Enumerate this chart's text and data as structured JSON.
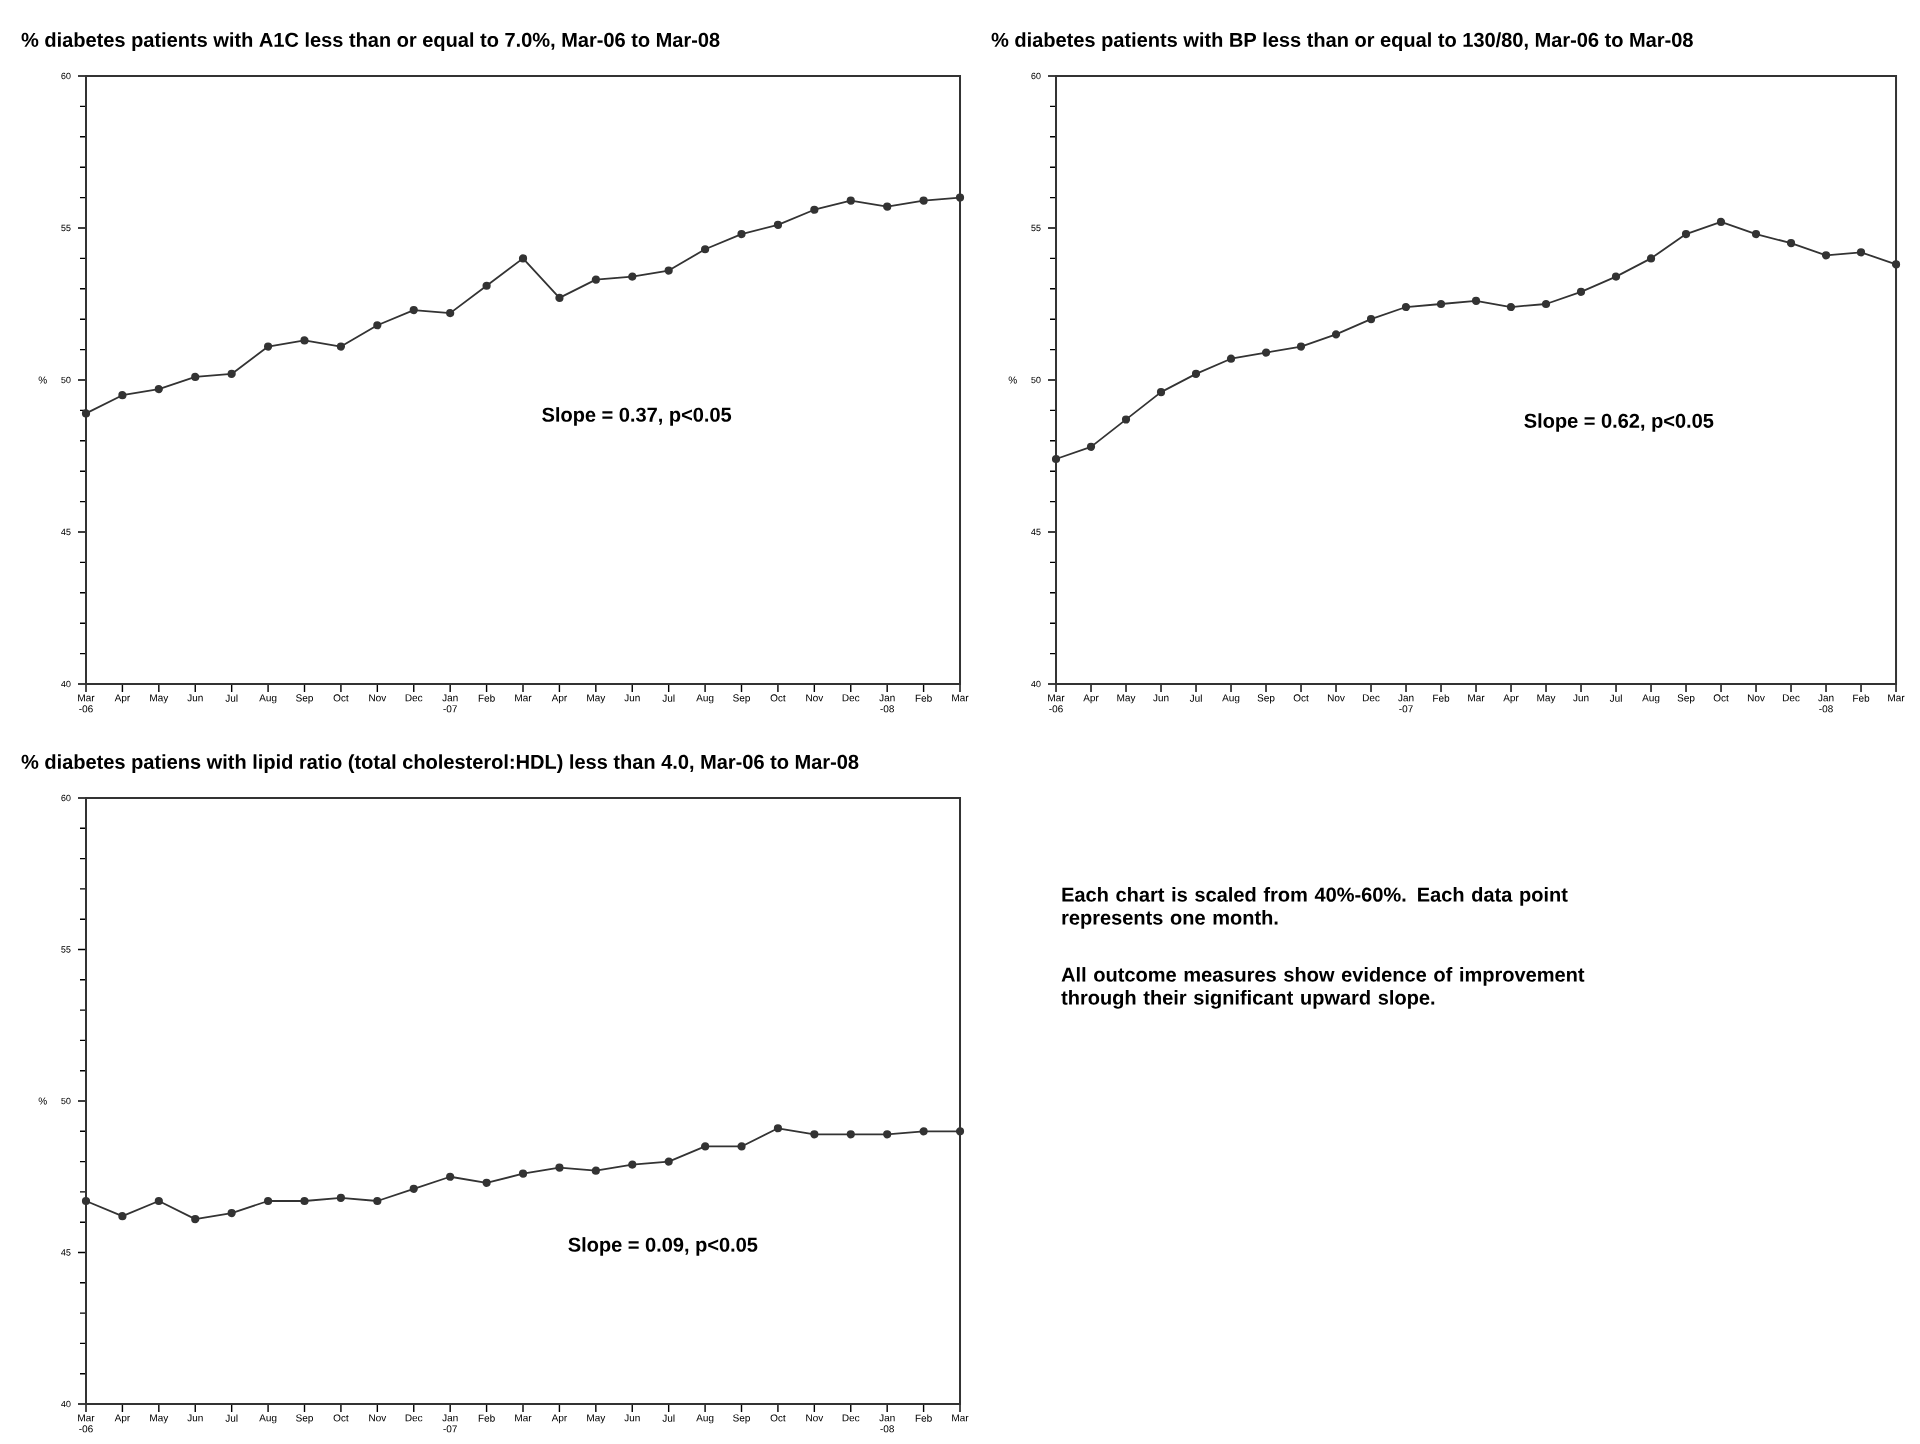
{
  "chart_data": [
    {
      "type": "line",
      "title": "% diabetes patients with A1C less than or equal to 7.0%, Mar-06 to Mar-08",
      "ylabel": "%",
      "categories": [
        "Mar -06",
        "Apr",
        "May",
        "Jun",
        "Jul",
        "Aug",
        "Sep",
        "Oct",
        "Nov",
        "Dec",
        "Jan -07",
        "Feb",
        "Mar",
        "Apr",
        "May",
        "Jun",
        "Jul",
        "Aug",
        "Sep",
        "Oct",
        "Nov",
        "Dec",
        "Jan -08",
        "Feb",
        "Mar"
      ],
      "values": [
        48.9,
        49.5,
        49.7,
        50.1,
        50.2,
        51.1,
        51.3,
        51.1,
        51.8,
        52.3,
        52.2,
        53.1,
        54.0,
        52.7,
        53.3,
        53.4,
        53.6,
        54.3,
        54.8,
        55.1,
        55.6,
        55.9,
        55.7,
        55.9,
        56.0
      ],
      "color": "#333333",
      "ylim": [
        40,
        60
      ],
      "yticks": [
        40,
        45,
        50,
        55,
        60
      ],
      "marker": "circle",
      "line_style": "solid",
      "annotations": [
        "Slope = 0.37, p<0.05"
      ]
    },
    {
      "type": "line",
      "title": "% diabetes patients with BP less than or equal to 130/80, Mar-06 to Mar-08",
      "ylabel": "%",
      "categories": [
        "Mar -06",
        "Apr",
        "May",
        "Jun",
        "Jul",
        "Aug",
        "Sep",
        "Oct",
        "Nov",
        "Dec",
        "Jan -07",
        "Feb",
        "Mar",
        "Apr",
        "May",
        "Jun",
        "Jul",
        "Aug",
        "Sep",
        "Oct",
        "Nov",
        "Dec",
        "Jan -08",
        "Feb",
        "Mar"
      ],
      "values": [
        47.4,
        47.8,
        48.7,
        49.6,
        50.2,
        50.7,
        50.9,
        51.1,
        51.5,
        52.0,
        52.4,
        52.5,
        52.6,
        52.4,
        52.5,
        52.9,
        53.4,
        54.0,
        54.8,
        55.2,
        54.8,
        54.5,
        54.1,
        54.2,
        53.8
      ],
      "color": "#333333",
      "ylim": [
        40,
        60
      ],
      "yticks": [
        40,
        45,
        50,
        55,
        60
      ],
      "marker": "circle",
      "line_style": "solid",
      "annotations": [
        "Slope = 0.62, p<0.05"
      ]
    },
    {
      "type": "line",
      "title": "% diabetes patiens with lipid ratio (total cholesterol:HDL) less than 4.0, Mar-06 to Mar-08",
      "ylabel": "%",
      "categories": [
        "Mar -06",
        "Apr",
        "May",
        "Jun",
        "Jul",
        "Aug",
        "Sep",
        "Oct",
        "Nov",
        "Dec",
        "Jan -07",
        "Feb",
        "Mar",
        "Apr",
        "May",
        "Jun",
        "Jul",
        "Aug",
        "Sep",
        "Oct",
        "Nov",
        "Dec",
        "Jan -08",
        "Feb",
        "Mar"
      ],
      "values": [
        46.7,
        46.2,
        46.7,
        46.1,
        46.3,
        46.7,
        46.7,
        46.8,
        46.7,
        47.1,
        47.5,
        47.3,
        47.6,
        47.8,
        47.7,
        47.9,
        48.0,
        48.5,
        48.5,
        49.1,
        48.9,
        48.9,
        48.9,
        49.0,
        49.0
      ],
      "color": "#333333",
      "ylim": [
        40,
        60
      ],
      "yticks": [
        40,
        45,
        50,
        55,
        60
      ],
      "marker": "circle",
      "line_style": "solid",
      "annotations": [
        "Slope = 0.09, p<0.05"
      ]
    },
    {
      "type": "other",
      "annotations": [
        "Each chart is scaled from 40%-60%. Each data point represents one month.",
        "All outcome measures show evidence of improvement through their significant upward slope."
      ]
    }
  ]
}
